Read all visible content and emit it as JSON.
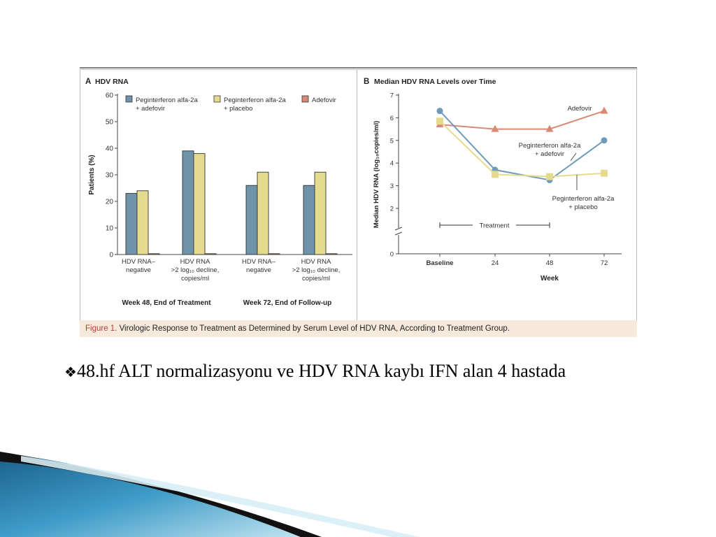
{
  "chart_data": [
    {
      "type": "bar",
      "panel": "A",
      "title": "HDV RNA",
      "ylabel": "Patients (%)",
      "ylim": [
        0,
        60
      ],
      "yticks": [
        0,
        10,
        20,
        30,
        40,
        50,
        60
      ],
      "grid": false,
      "legend_placement": "top",
      "categories": [
        [
          "HDV RNA–",
          "negative"
        ],
        [
          "HDV RNA",
          ">2 log₁₀ decline,",
          "copies/ml"
        ],
        [
          "HDV RNA–",
          "negative"
        ],
        [
          "HDV RNA",
          ">2 log₁₀ decline,",
          "copies/ml"
        ]
      ],
      "groups": [
        "Week 48, End of Treatment",
        "Week 72, End of Follow-up"
      ],
      "series": [
        {
          "name": "Peginterferon alfa-2a + adefovir",
          "legend_lines": [
            "Peginterferon alfa-2a",
            "+ adefovir"
          ],
          "color": "#6f93a8",
          "values": [
            23,
            39,
            26,
            26
          ]
        },
        {
          "name": "Peginterferon alfa-2a + placebo",
          "legend_lines": [
            "Peginterferon alfa-2a",
            "+ placebo"
          ],
          "color": "#e5db8f",
          "values": [
            24,
            38,
            31,
            31
          ]
        },
        {
          "name": "Adefovir",
          "legend_lines": [
            "Adefovir"
          ],
          "color": "#d98a76",
          "values": [
            0,
            0,
            0,
            0
          ]
        }
      ]
    },
    {
      "type": "line",
      "panel": "B",
      "title": "Median HDV RNA Levels over Time",
      "ylabel": "Median HDV RNA (log₁₀copies/ml)",
      "xlabel": "Week",
      "x": [
        "Baseline",
        "24",
        "48",
        "72"
      ],
      "ylim": [
        0,
        7
      ],
      "yticks": [
        0,
        2,
        3,
        4,
        5,
        6,
        7
      ],
      "y_axis_break": true,
      "grid": false,
      "series": [
        {
          "name": "Adefovir",
          "label_lines": [
            "Adefovir"
          ],
          "color": "#d98a76",
          "marker": "triangle",
          "values": [
            5.7,
            5.5,
            5.5,
            6.3
          ]
        },
        {
          "name": "Peginterferon alfa-2a + adefovir",
          "label_lines": [
            "Peginterferon alfa-2a",
            "+ adefovir"
          ],
          "color": "#6f9bb8",
          "marker": "circle",
          "values": [
            6.3,
            3.7,
            3.25,
            5.0
          ]
        },
        {
          "name": "Peginterferon alfa-2a + placebo",
          "label_lines": [
            "Peginterferon alfa-2a",
            "+ placebo"
          ],
          "color": "#e5db8f",
          "marker": "square",
          "values": [
            5.85,
            3.5,
            3.4,
            3.55
          ]
        }
      ],
      "annotation": {
        "text": "Treatment",
        "x_start": "Baseline",
        "x_end": "48"
      }
    }
  ],
  "caption": {
    "figure_label": "Figure 1.",
    "text": " Virologic Response to Treatment as Determined by Serum Level of HDV RNA, According to Treatment Group."
  },
  "bullet": {
    "mark": "❖",
    "text": "48.hf ALT normalizasyonu ve HDV RNA kaybı IFN alan 4 hastada"
  }
}
